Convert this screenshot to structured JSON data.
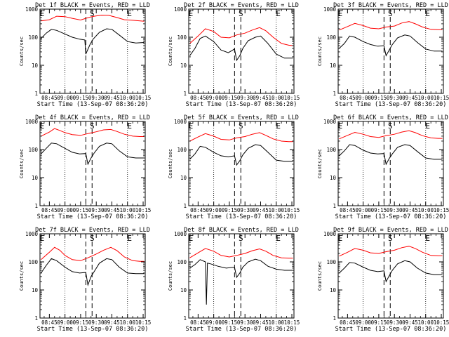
{
  "chart_data": [
    {
      "type": "line",
      "title": "Det 1f BLACK = Events, RED = LLD",
      "xlabel": "Start Time (13-Sep-07 08:36:20)",
      "ylabel": "Counts/sec",
      "xticks": [
        "08:45",
        "09:00",
        "09:15",
        "09:30",
        "09:45",
        "10:00",
        "10:15"
      ],
      "yticks": [
        "1",
        "10",
        "100",
        "1000"
      ],
      "ylim": [
        1,
        1000
      ],
      "yscale": "log",
      "markers": [
        {
          "label": "E",
          "x": "08:38"
        },
        {
          "label": "S",
          "x": "09:26"
        },
        {
          "label": "E",
          "x": "10:02"
        }
      ],
      "series": [
        {
          "color": "#ff0000",
          "x": [
            "08:37",
            "08:45",
            "08:52",
            "09:00",
            "09:07",
            "09:15",
            "09:20",
            "09:24",
            "09:28",
            "09:35",
            "09:42",
            "09:50",
            "09:57",
            "10:05",
            "10:12",
            "10:16"
          ],
          "y": [
            380,
            420,
            560,
            540,
            470,
            410,
            470,
            520,
            560,
            610,
            600,
            500,
            420,
            400,
            380,
            370
          ]
        },
        {
          "color": "#000000",
          "x": [
            "08:37",
            "08:42",
            "08:47",
            "08:52",
            "09:00",
            "09:07",
            "09:14",
            "09:19",
            "09:20",
            "09:24",
            "09:27",
            "09:33",
            "09:40",
            "09:45",
            "09:52",
            "10:00",
            "10:08",
            "10:16"
          ],
          "y": [
            90,
            140,
            190,
            175,
            130,
            100,
            85,
            80,
            25,
            55,
            85,
            150,
            200,
            190,
            120,
            70,
            62,
            65
          ]
        }
      ]
    },
    {
      "type": "line",
      "title": "Det 2f BLACK = Events, RED = LLD",
      "xlabel": "Start Time (13-Sep-07 08:36:20)",
      "ylabel": "Counts/sec",
      "xticks": [
        "08:45",
        "09:00",
        "09:15",
        "09:30",
        "09:45",
        "10:00",
        "10:15"
      ],
      "yticks": [
        "1",
        "10",
        "100",
        "1000"
      ],
      "ylim": [
        1,
        1000
      ],
      "yscale": "log",
      "markers": [
        {
          "label": "E",
          "x": "08:38"
        },
        {
          "label": "S",
          "x": "09:26"
        },
        {
          "label": "E",
          "x": "10:02"
        }
      ],
      "series": [
        {
          "color": "#ff0000",
          "x": [
            "08:37",
            "08:45",
            "08:52",
            "09:00",
            "09:07",
            "09:15",
            "09:22",
            "09:30",
            "09:37",
            "09:44",
            "09:50",
            "09:57",
            "10:05",
            "10:12",
            "10:16"
          ],
          "y": [
            60,
            110,
            200,
            160,
            100,
            95,
            120,
            140,
            180,
            220,
            170,
            100,
            60,
            52,
            50
          ]
        },
        {
          "color": "#000000",
          "x": [
            "08:37",
            "08:42",
            "08:47",
            "08:52",
            "09:00",
            "09:07",
            "09:14",
            "09:20",
            "09:22",
            "09:25",
            "09:28",
            "09:33",
            "09:40",
            "09:45",
            "09:52",
            "10:00",
            "10:08",
            "10:16"
          ],
          "y": [
            22,
            40,
            90,
            110,
            70,
            35,
            28,
            38,
            15,
            22,
            40,
            75,
            100,
            110,
            60,
            25,
            18,
            18
          ]
        }
      ]
    },
    {
      "type": "line",
      "title": "Det 3f BLACK = Events, RED = LLD",
      "xlabel": "Start Time (13-Sep-07 08:36:20)",
      "ylabel": "Counts/sec",
      "xticks": [
        "08:45",
        "09:00",
        "09:15",
        "09:30",
        "09:45",
        "10:00",
        "10:15"
      ],
      "yticks": [
        "1",
        "10",
        "100",
        "1000"
      ],
      "ylim": [
        1,
        1000
      ],
      "yscale": "log",
      "markers": [
        {
          "label": "E",
          "x": "08:38"
        },
        {
          "label": "S",
          "x": "09:26"
        },
        {
          "label": "E",
          "x": "10:02"
        }
      ],
      "series": [
        {
          "color": "#ff0000",
          "x": [
            "08:37",
            "08:45",
            "08:52",
            "09:00",
            "09:07",
            "09:15",
            "09:22",
            "09:30",
            "09:37",
            "09:44",
            "09:50",
            "09:57",
            "10:05",
            "10:12",
            "10:16"
          ],
          "y": [
            180,
            240,
            310,
            260,
            210,
            200,
            230,
            250,
            320,
            360,
            300,
            230,
            190,
            185,
            185
          ]
        },
        {
          "color": "#000000",
          "x": [
            "08:37",
            "08:42",
            "08:47",
            "08:52",
            "09:00",
            "09:07",
            "09:14",
            "09:20",
            "09:22",
            "09:25",
            "09:28",
            "09:33",
            "09:40",
            "09:45",
            "09:52",
            "10:00",
            "10:08",
            "10:16"
          ],
          "y": [
            40,
            60,
            110,
            100,
            70,
            55,
            48,
            50,
            22,
            35,
            55,
            95,
            120,
            110,
            65,
            38,
            32,
            32
          ]
        }
      ]
    },
    {
      "type": "line",
      "title": "Det 4f BLACK = Events, RED = LLD",
      "xlabel": "Start Time (13-Sep-07 08:36:20)",
      "ylabel": "Counts/sec",
      "xticks": [
        "08:45",
        "09:00",
        "09:15",
        "09:30",
        "09:45",
        "10:00",
        "10:15"
      ],
      "yticks": [
        "1",
        "10",
        "100",
        "1000"
      ],
      "ylim": [
        1,
        1000
      ],
      "yscale": "log",
      "markers": [
        {
          "label": "E",
          "x": "08:38"
        },
        {
          "label": "S",
          "x": "09:26"
        },
        {
          "label": "E",
          "x": "10:02"
        }
      ],
      "series": [
        {
          "color": "#ff0000",
          "x": [
            "08:37",
            "08:45",
            "08:50",
            "08:55",
            "09:00",
            "09:07",
            "09:15",
            "09:22",
            "09:30",
            "09:37",
            "09:44",
            "09:50",
            "09:57",
            "10:05",
            "10:12",
            "10:16"
          ],
          "y": [
            300,
            420,
            560,
            480,
            400,
            340,
            320,
            370,
            430,
            500,
            520,
            440,
            350,
            300,
            290,
            290
          ]
        },
        {
          "color": "#000000",
          "x": [
            "08:37",
            "08:42",
            "08:47",
            "08:52",
            "09:00",
            "09:07",
            "09:14",
            "09:20",
            "09:22",
            "09:25",
            "09:28",
            "09:33",
            "09:40",
            "09:45",
            "09:52",
            "10:00",
            "10:08",
            "10:16"
          ],
          "y": [
            70,
            110,
            170,
            160,
            110,
            80,
            70,
            72,
            30,
            50,
            75,
            130,
            170,
            160,
            90,
            55,
            50,
            50
          ]
        }
      ]
    },
    {
      "type": "line",
      "title": "Det 5f BLACK = Events, RED = LLD",
      "xlabel": "Start Time (13-Sep-07 08:36:20)",
      "ylabel": "Counts/sec",
      "xticks": [
        "08:45",
        "09:00",
        "09:15",
        "09:30",
        "09:45",
        "10:00",
        "10:15"
      ],
      "yticks": [
        "1",
        "10",
        "100",
        "1000"
      ],
      "ylim": [
        1,
        1000
      ],
      "yscale": "log",
      "markers": [
        {
          "label": "E",
          "x": "08:38"
        },
        {
          "label": "S",
          "x": "09:26"
        },
        {
          "label": "E",
          "x": "10:02"
        }
      ],
      "series": [
        {
          "color": "#ff0000",
          "x": [
            "08:37",
            "08:45",
            "08:52",
            "09:00",
            "09:07",
            "09:15",
            "09:22",
            "09:30",
            "09:37",
            "09:44",
            "09:50",
            "09:57",
            "10:05",
            "10:12",
            "10:16"
          ],
          "y": [
            200,
            280,
            370,
            300,
            230,
            220,
            260,
            290,
            350,
            400,
            320,
            240,
            200,
            190,
            190
          ]
        },
        {
          "color": "#000000",
          "x": [
            "08:37",
            "08:42",
            "08:47",
            "08:52",
            "09:00",
            "09:07",
            "09:14",
            "09:20",
            "09:22",
            "09:25",
            "09:28",
            "09:33",
            "09:40",
            "09:45",
            "09:52",
            "10:00",
            "10:08",
            "10:16"
          ],
          "y": [
            45,
            70,
            130,
            120,
            80,
            60,
            55,
            60,
            28,
            40,
            65,
            110,
            150,
            140,
            80,
            42,
            38,
            38
          ]
        }
      ]
    },
    {
      "type": "line",
      "title": "Det 6f BLACK = Events, RED = LLD",
      "xlabel": "Start Time (13-Sep-07 08:36:20)",
      "ylabel": "Counts/sec",
      "xticks": [
        "08:45",
        "09:00",
        "09:15",
        "09:30",
        "09:45",
        "10:00",
        "10:15"
      ],
      "yticks": [
        "1",
        "10",
        "100",
        "1000"
      ],
      "ylim": [
        1,
        1000
      ],
      "yscale": "log",
      "markers": [
        {
          "label": "E",
          "x": "08:38"
        },
        {
          "label": "S",
          "x": "09:26"
        },
        {
          "label": "E",
          "x": "10:02"
        }
      ],
      "series": [
        {
          "color": "#ff0000",
          "x": [
            "08:37",
            "08:45",
            "08:52",
            "09:00",
            "09:07",
            "09:15",
            "09:22",
            "09:30",
            "09:37",
            "09:44",
            "09:50",
            "09:57",
            "10:05",
            "10:12",
            "10:16"
          ],
          "y": [
            240,
            320,
            410,
            350,
            290,
            270,
            310,
            350,
            420,
            470,
            400,
            310,
            260,
            250,
            250
          ]
        },
        {
          "color": "#000000",
          "x": [
            "08:37",
            "08:42",
            "08:47",
            "08:52",
            "09:00",
            "09:07",
            "09:14",
            "09:20",
            "09:22",
            "09:25",
            "09:28",
            "09:33",
            "09:40",
            "09:45",
            "09:52",
            "10:00",
            "10:08",
            "10:16"
          ],
          "y": [
            60,
            90,
            150,
            140,
            95,
            75,
            70,
            72,
            30,
            48,
            70,
            120,
            150,
            140,
            85,
            50,
            45,
            45
          ]
        }
      ]
    },
    {
      "type": "line",
      "title": "Det 7f BLACK = Events, RED = LLD",
      "xlabel": "Start Time (13-Sep-07 08:36:20)",
      "ylabel": "Counts/sec",
      "xticks": [
        "08:45",
        "09:00",
        "09:15",
        "09:30",
        "09:45",
        "10:00",
        "10:15"
      ],
      "yticks": [
        "1",
        "10",
        "100",
        "1000"
      ],
      "ylim": [
        1,
        1000
      ],
      "yscale": "log",
      "markers": [
        {
          "label": "E",
          "x": "08:38"
        },
        {
          "label": "S",
          "x": "09:26"
        },
        {
          "label": "E",
          "x": "10:02"
        }
      ],
      "series": [
        {
          "color": "#ff0000",
          "x": [
            "08:37",
            "08:45",
            "08:50",
            "08:55",
            "09:00",
            "09:07",
            "09:15",
            "09:22",
            "09:30",
            "09:37",
            "09:44",
            "09:50",
            "09:57",
            "10:05",
            "10:12",
            "10:16"
          ],
          "y": [
            120,
            220,
            330,
            260,
            170,
            120,
            110,
            140,
            190,
            260,
            330,
            250,
            150,
            110,
            105,
            105
          ]
        },
        {
          "color": "#000000",
          "x": [
            "08:37",
            "08:42",
            "08:47",
            "08:52",
            "09:00",
            "09:07",
            "09:14",
            "09:20",
            "09:22",
            "09:25",
            "09:28",
            "09:33",
            "09:40",
            "09:45",
            "09:52",
            "10:00",
            "10:08",
            "10:16"
          ],
          "y": [
            40,
            75,
            130,
            110,
            65,
            45,
            40,
            42,
            15,
            30,
            45,
            90,
            130,
            120,
            65,
            40,
            38,
            38
          ]
        }
      ]
    },
    {
      "type": "line",
      "title": "Det 8f BLACK = Events, RED = LLD",
      "xlabel": "Start Time (13-Sep-07 08:36:20)",
      "ylabel": "Counts/sec",
      "xticks": [
        "08:45",
        "09:00",
        "09:15",
        "09:30",
        "09:45",
        "10:00",
        "10:15"
      ],
      "yticks": [
        "1",
        "10",
        "100",
        "1000"
      ],
      "ylim": [
        1,
        1000
      ],
      "yscale": "log",
      "markers": [
        {
          "label": "E",
          "x": "08:38"
        },
        {
          "label": "S",
          "x": "09:26"
        },
        {
          "label": "E",
          "x": "10:02"
        }
      ],
      "series": [
        {
          "color": "#ff0000",
          "x": [
            "08:37",
            "08:45",
            "08:52",
            "09:00",
            "09:07",
            "09:15",
            "09:22",
            "09:30",
            "09:37",
            "09:44",
            "09:50",
            "09:57",
            "10:05",
            "10:12",
            "10:16"
          ],
          "y": [
            140,
            210,
            300,
            240,
            170,
            150,
            170,
            200,
            250,
            290,
            240,
            170,
            140,
            135,
            135
          ]
        },
        {
          "color": "#000000",
          "x": [
            "08:37",
            "08:42",
            "08:47",
            "08:52",
            "08:53",
            "08:54",
            "08:57",
            "09:04",
            "09:12",
            "09:20",
            "09:22",
            "09:25",
            "09:28",
            "09:33",
            "09:40",
            "09:45",
            "09:52",
            "10:00",
            "10:08",
            "10:16"
          ],
          "y": [
            60,
            80,
            120,
            100,
            3,
            90,
            85,
            70,
            60,
            65,
            28,
            40,
            65,
            100,
            125,
            110,
            70,
            55,
            50,
            50
          ]
        }
      ]
    },
    {
      "type": "line",
      "title": "Det 9f BLACK = Events, RED = LLD",
      "xlabel": "Start Time (13-Sep-07 08:36:20)",
      "ylabel": "Counts/sec",
      "xticks": [
        "08:45",
        "09:00",
        "09:15",
        "09:30",
        "09:45",
        "10:00",
        "10:15"
      ],
      "yticks": [
        "1",
        "10",
        "100",
        "1000"
      ],
      "ylim": [
        1,
        1000
      ],
      "yscale": "log",
      "markers": [
        {
          "label": "E",
          "x": "08:38"
        },
        {
          "label": "S",
          "x": "09:26"
        },
        {
          "label": "E",
          "x": "10:02"
        }
      ],
      "series": [
        {
          "color": "#ff0000",
          "x": [
            "08:37",
            "08:45",
            "08:52",
            "09:00",
            "09:07",
            "09:15",
            "09:22",
            "09:30",
            "09:37",
            "09:44",
            "09:50",
            "09:57",
            "10:05",
            "10:12",
            "10:16"
          ],
          "y": [
            160,
            220,
            300,
            260,
            210,
            200,
            230,
            260,
            320,
            360,
            300,
            220,
            170,
            165,
            165
          ]
        },
        {
          "color": "#000000",
          "x": [
            "08:37",
            "08:42",
            "08:47",
            "08:52",
            "09:00",
            "09:07",
            "09:14",
            "09:20",
            "09:22",
            "09:25",
            "09:28",
            "09:33",
            "09:40",
            "09:45",
            "09:52",
            "10:00",
            "10:08",
            "10:16"
          ],
          "y": [
            40,
            60,
            95,
            90,
            65,
            50,
            45,
            48,
            20,
            32,
            50,
            85,
            110,
            100,
            60,
            40,
            35,
            35
          ]
        }
      ]
    }
  ]
}
